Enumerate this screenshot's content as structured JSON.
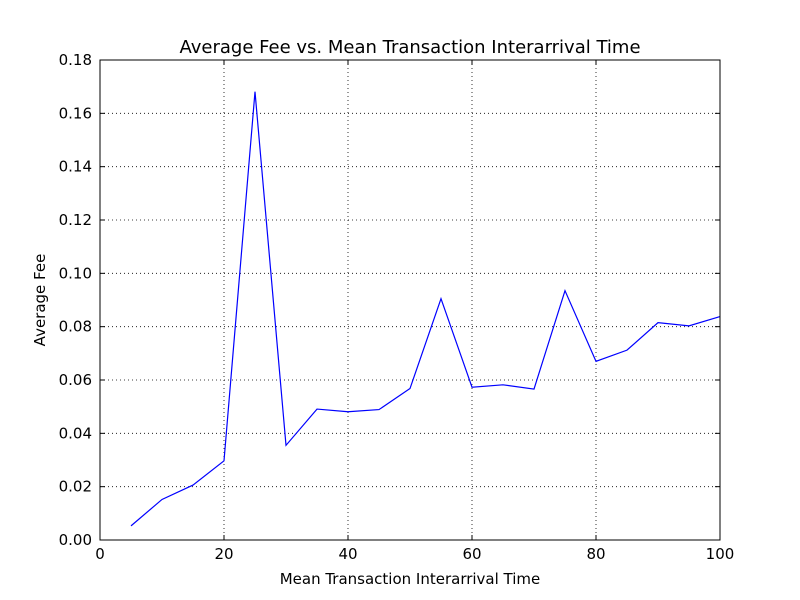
{
  "chart_data": {
    "type": "line",
    "title": "Average Fee vs. Mean Transaction Interarrival Time",
    "xlabel": "Mean Transaction Interarrival Time",
    "ylabel": "Average Fee",
    "xlim": [
      0,
      100
    ],
    "ylim": [
      0.0,
      0.18
    ],
    "xticks": [
      0,
      20,
      40,
      60,
      80,
      100
    ],
    "xtick_labels": [
      "0",
      "20",
      "40",
      "60",
      "80",
      "100"
    ],
    "yticks": [
      0.0,
      0.02,
      0.04,
      0.06,
      0.08,
      0.1,
      0.12,
      0.14,
      0.16,
      0.18
    ],
    "ytick_labels": [
      "0.00",
      "0.02",
      "0.04",
      "0.06",
      "0.08",
      "0.10",
      "0.12",
      "0.14",
      "0.16",
      "0.18"
    ],
    "grid": true,
    "series": [
      {
        "color": "#0000ff",
        "x": [
          5,
          10,
          15,
          20,
          25,
          30,
          35,
          40,
          45,
          50,
          55,
          60,
          65,
          70,
          75,
          80,
          85,
          90,
          95,
          100
        ],
        "y": [
          0.0053,
          0.0152,
          0.0206,
          0.0297,
          0.1681,
          0.0355,
          0.0491,
          0.0481,
          0.0489,
          0.0568,
          0.0905,
          0.0573,
          0.0582,
          0.0566,
          0.0935,
          0.067,
          0.0712,
          0.0815,
          0.0803,
          0.0838
        ]
      }
    ]
  }
}
